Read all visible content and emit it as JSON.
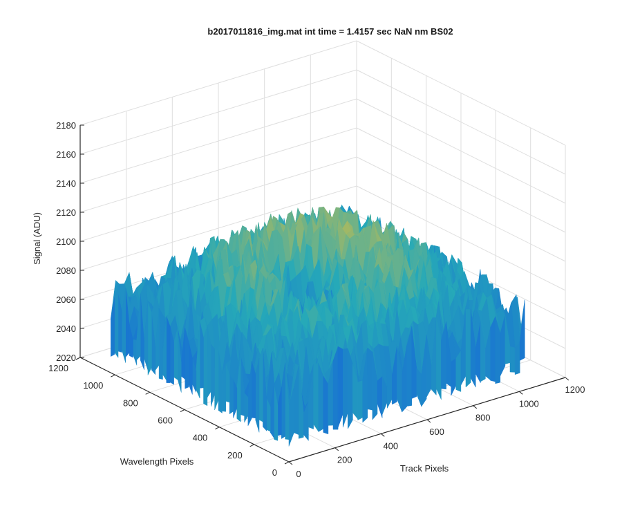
{
  "chart_data": {
    "type": "surface",
    "title": "b2017011816_img.mat int time = 1.4157 sec  NaN nm BS02",
    "xlabel": "Track Pixels",
    "ylabel": "Wavelength Pixels",
    "zlabel": "Signal (ADU)",
    "xlim": [
      0,
      1200
    ],
    "ylim": [
      0,
      1200
    ],
    "zlim": [
      2020,
      2180
    ],
    "x_ticks": [
      "0",
      "200",
      "400",
      "600",
      "800",
      "1000",
      "1200"
    ],
    "y_ticks": [
      "0",
      "200",
      "400",
      "600",
      "800",
      "1000",
      "1200"
    ],
    "z_ticks": [
      "2020",
      "2040",
      "2060",
      "2080",
      "2100",
      "2120",
      "2140",
      "2160",
      "2180"
    ],
    "grid": true,
    "colormap": "parula",
    "data_extent": {
      "x": [
        0,
        1024
      ],
      "y": [
        0,
        1024
      ]
    },
    "surface_summary": {
      "edge_mean": 2070,
      "center_mean": 2115,
      "noise_amplitude": 20,
      "dip_near": {
        "x": 430,
        "y": 450,
        "value": 2060
      }
    },
    "colors": {
      "low": "#1565d8",
      "mid": "#26a9b8",
      "high": "#f2c230",
      "grid": "#dedede",
      "axis": "#262626"
    }
  }
}
